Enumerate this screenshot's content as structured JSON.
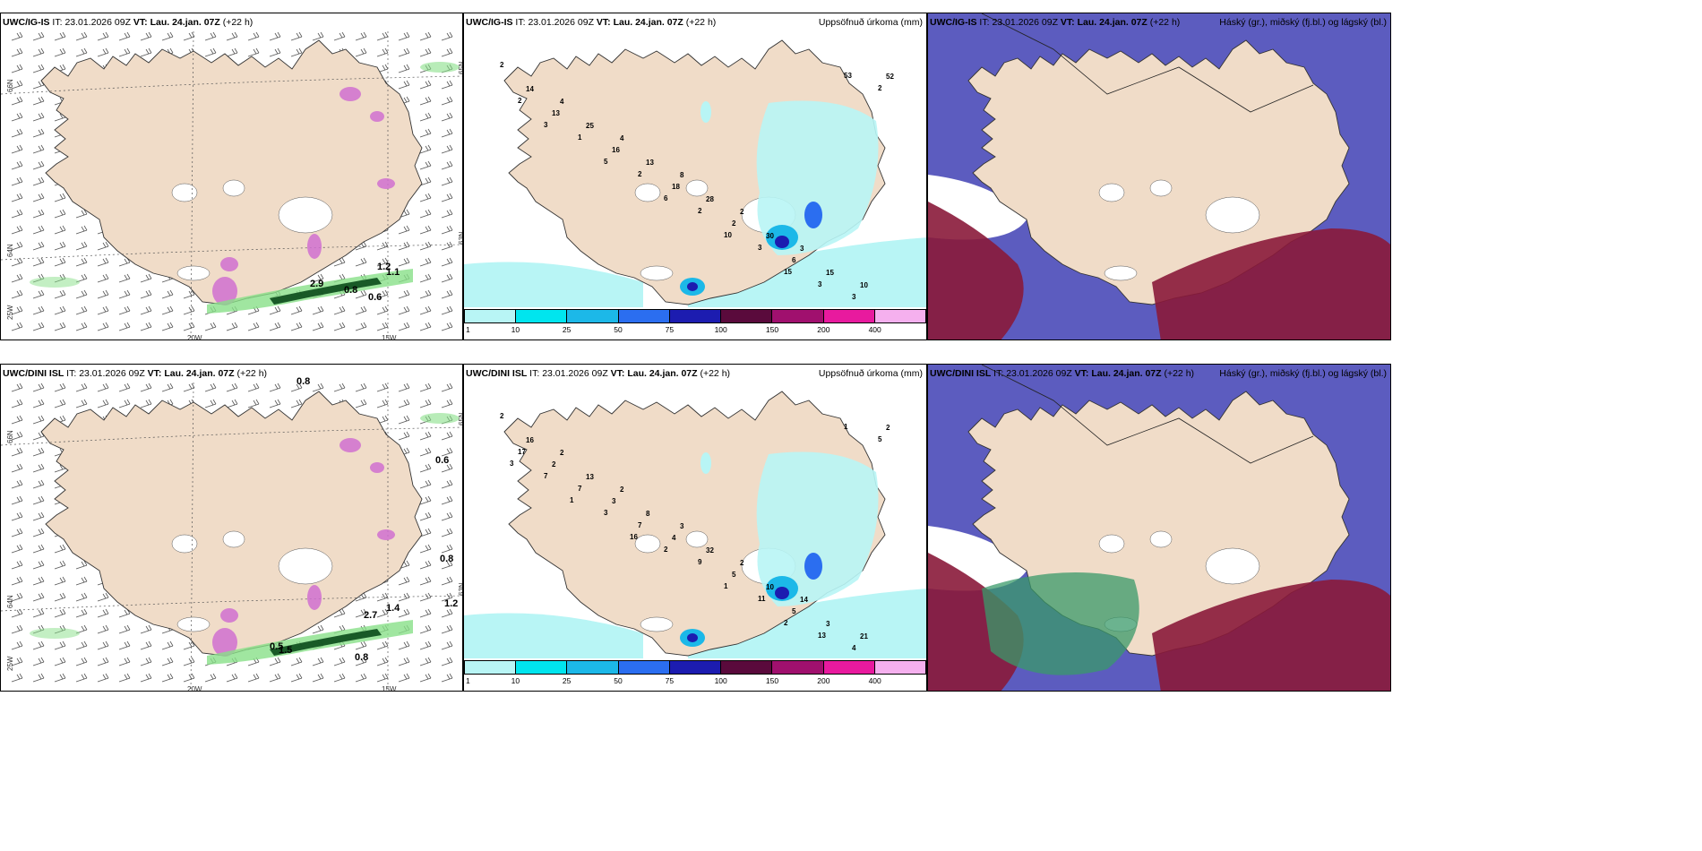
{
  "panels": [
    {
      "id": "p1",
      "model": "UWC/IG-IS",
      "it_label": "IT:",
      "it": "23.01.2026 09Z",
      "vt_label": "VT:",
      "vt": "Lau. 24.jan. 07Z",
      "lead": "(+22 h)",
      "right": "",
      "type": "wind",
      "lat_labels": [
        "66N",
        "64N",
        "65N",
        "63N",
        "25W"
      ],
      "lon_labels": [
        "20W",
        "15W"
      ],
      "values": [
        "2.9",
        "0.8",
        "0.6",
        "1.2",
        "1.1"
      ]
    },
    {
      "id": "p2",
      "model": "UWC/IG-IS",
      "it_label": "IT:",
      "it": "23.01.2026 09Z",
      "vt_label": "VT:",
      "vt": "Lau. 24.jan. 07Z",
      "lead": "(+22 h)",
      "right": "Uppsöfnuð úrkoma (mm)",
      "type": "precip",
      "values": [
        "2",
        "4",
        "4",
        "8",
        "2",
        "3",
        "10",
        "14",
        "25",
        "13",
        "28",
        "30",
        "15",
        "52",
        "13",
        "16",
        "18",
        "2",
        "6",
        "3",
        "2",
        "1",
        "2",
        "2",
        "3",
        "3",
        "2",
        "3",
        "5",
        "6",
        "10",
        "15",
        "53"
      ]
    },
    {
      "id": "p3",
      "model": "UWC/IG-IS",
      "it_label": "IT:",
      "it": "23.01.2026 09Z",
      "vt_label": "VT:",
      "vt": "Lau. 24.jan. 07Z",
      "lead": "(+22 h)",
      "right": "Háský (gr.), miðský (fj.bl.) og lágský (bl.)",
      "type": "cloud",
      "values": []
    },
    {
      "id": "p4",
      "model": "UWC/DINI ISL",
      "it_label": "IT:",
      "it": "23.01.2026 09Z",
      "vt_label": "VT:",
      "vt": "Lau. 24.jan. 07Z",
      "lead": "(+22 h)",
      "right": "",
      "type": "wind",
      "lat_labels": [
        "66N",
        "64N",
        "65N",
        "63N",
        "25W"
      ],
      "lon_labels": [
        "20W",
        "15W"
      ],
      "values": [
        "0.8",
        "0.6",
        "0.8",
        "2.7",
        "1.4",
        "1.2",
        "0.8",
        "1.5",
        "0.5"
      ]
    },
    {
      "id": "p5",
      "model": "UWC/DINI ISL",
      "it_label": "IT:",
      "it": "23.01.2026 09Z",
      "vt_label": "VT:",
      "vt": "Lau. 24.jan. 07Z",
      "lead": "(+22 h)",
      "right": "Uppsöfnuð úrkoma (mm)",
      "type": "precip",
      "values": [
        "2",
        "2",
        "2",
        "3",
        "2",
        "14",
        "21",
        "16",
        "13",
        "8",
        "32",
        "10",
        "3",
        "2",
        "2",
        "3",
        "4",
        "5",
        "5",
        "4",
        "17",
        "7",
        "7",
        "9",
        "11",
        "13",
        "5",
        "7",
        "3",
        "2",
        "1",
        "2",
        "1",
        "3",
        "1",
        "16"
      ]
    },
    {
      "id": "p6",
      "model": "UWC/DINI ISL",
      "it_label": "IT:",
      "it": "23.01.2026 09Z",
      "vt_label": "VT:",
      "vt": "Lau. 24.jan. 07Z",
      "lead": "(+22 h)",
      "right": "Háský (gr.), miðský (fj.bl.) og lágský (bl.)",
      "type": "cloud",
      "values": []
    }
  ],
  "colorbar": {
    "ticks": [
      "1",
      "10",
      "25",
      "50",
      "75",
      "100",
      "150",
      "200",
      "400"
    ],
    "colors": [
      "#b8f5f5",
      "#00e5ee",
      "#1cb8e8",
      "#2b6ef0",
      "#1c1cb0",
      "#5a0a3c",
      "#a0106e",
      "#e81a9e",
      "#f5b0ee"
    ]
  },
  "colors": {
    "land": "#f0dcc8",
    "precip_light": "#b8f5f5",
    "wind_green": "#88e088",
    "wind_dark": "#0a4a1a",
    "pink": "#d070d0",
    "cloud_blue": "#4a4ab8",
    "cloud_red": "#8a1a3a",
    "cloud_green": "#3a9a6a"
  }
}
